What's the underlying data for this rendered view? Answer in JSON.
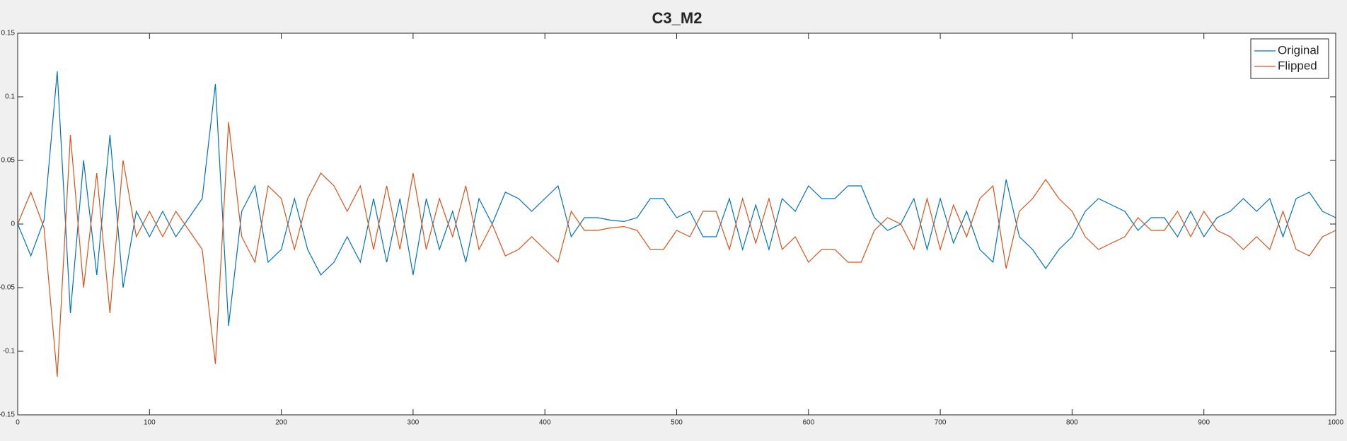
{
  "chart_data": {
    "type": "line",
    "title": "C3_M2",
    "x": [
      0,
      10,
      20,
      30,
      40,
      50,
      60,
      70,
      80,
      90,
      100,
      110,
      120,
      130,
      140,
      150,
      160,
      170,
      180,
      190,
      200,
      210,
      220,
      230,
      240,
      250,
      260,
      270,
      280,
      290,
      300,
      310,
      320,
      330,
      340,
      350,
      360,
      370,
      380,
      390,
      400,
      410,
      420,
      430,
      440,
      450,
      460,
      470,
      480,
      490,
      500,
      510,
      520,
      530,
      540,
      550,
      560,
      570,
      580,
      590,
      600,
      610,
      620,
      630,
      640,
      650,
      660,
      670,
      680,
      690,
      700,
      710,
      720,
      730,
      740,
      750,
      760,
      770,
      780,
      790,
      800,
      810,
      820,
      830,
      840,
      850,
      860,
      870,
      880,
      890,
      900,
      910,
      920,
      930,
      940,
      950,
      960,
      970,
      980,
      990,
      1000
    ],
    "series": [
      {
        "name": "Original",
        "color": "#0072bd",
        "values": [
          0,
          -0.025,
          0.003,
          0.12,
          -0.07,
          0.05,
          -0.04,
          0.07,
          -0.05,
          0.01,
          -0.01,
          0.01,
          -0.01,
          0.005,
          0.02,
          0.11,
          -0.08,
          0.01,
          0.03,
          -0.03,
          -0.02,
          0.02,
          -0.02,
          -0.04,
          -0.03,
          -0.01,
          -0.03,
          0.02,
          -0.03,
          0.02,
          -0.04,
          0.02,
          -0.02,
          0.01,
          -0.03,
          0.02,
          0,
          0.025,
          0.02,
          0.01,
          0.02,
          0.03,
          -0.01,
          0.005,
          0.005,
          0.003,
          0.002,
          0.005,
          0.02,
          0.02,
          0.005,
          0.01,
          -0.01,
          -0.01,
          0.02,
          -0.02,
          0.015,
          -0.02,
          0.02,
          0.01,
          0.03,
          0.02,
          0.02,
          0.03,
          0.03,
          0.005,
          -0.005,
          0,
          0.02,
          -0.02,
          0.02,
          -0.015,
          0.01,
          -0.02,
          -0.03,
          0.035,
          -0.01,
          -0.02,
          -0.035,
          -0.02,
          -0.01,
          0.01,
          0.02,
          0.015,
          0.01,
          -0.005,
          0.005,
          0.005,
          -0.01,
          0.01,
          -0.01,
          0.005,
          0.01,
          0.02,
          0.01,
          0.02,
          -0.01,
          0.02,
          0.025,
          0.01,
          0.005
        ]
      },
      {
        "name": "Flipped",
        "color": "#d95319",
        "values": [
          0,
          0.025,
          -0.003,
          -0.12,
          0.07,
          -0.05,
          0.04,
          -0.07,
          0.05,
          -0.01,
          0.01,
          -0.01,
          0.01,
          -0.005,
          -0.02,
          -0.11,
          0.08,
          -0.01,
          -0.03,
          0.03,
          0.02,
          -0.02,
          0.02,
          0.04,
          0.03,
          0.01,
          0.03,
          -0.02,
          0.03,
          -0.02,
          0.04,
          -0.02,
          0.02,
          -0.01,
          0.03,
          -0.02,
          0,
          -0.025,
          -0.02,
          -0.01,
          -0.02,
          -0.03,
          0.01,
          -0.005,
          -0.005,
          -0.003,
          -0.002,
          -0.005,
          -0.02,
          -0.02,
          -0.005,
          -0.01,
          0.01,
          0.01,
          -0.02,
          0.02,
          -0.015,
          0.02,
          -0.02,
          -0.01,
          -0.03,
          -0.02,
          -0.02,
          -0.03,
          -0.03,
          -0.005,
          0.005,
          0,
          -0.02,
          0.02,
          -0.02,
          0.015,
          -0.01,
          0.02,
          0.03,
          -0.035,
          0.01,
          0.02,
          0.035,
          0.02,
          0.01,
          -0.01,
          -0.02,
          -0.015,
          -0.01,
          0.005,
          -0.005,
          -0.005,
          0.01,
          -0.01,
          0.01,
          -0.005,
          -0.01,
          -0.02,
          -0.01,
          -0.02,
          0.01,
          -0.02,
          -0.025,
          -0.01,
          -0.005
        ]
      }
    ],
    "xlim": [
      0,
      1000
    ],
    "xticks": [
      0,
      100,
      200,
      300,
      400,
      500,
      600,
      700,
      800,
      900,
      1000
    ],
    "ylim": [
      -0.15,
      0.15
    ],
    "yticks": [
      -0.15,
      -0.1,
      -0.05,
      0,
      0.05,
      0.1,
      0.15
    ],
    "grid": false,
    "legend": "top-right"
  }
}
